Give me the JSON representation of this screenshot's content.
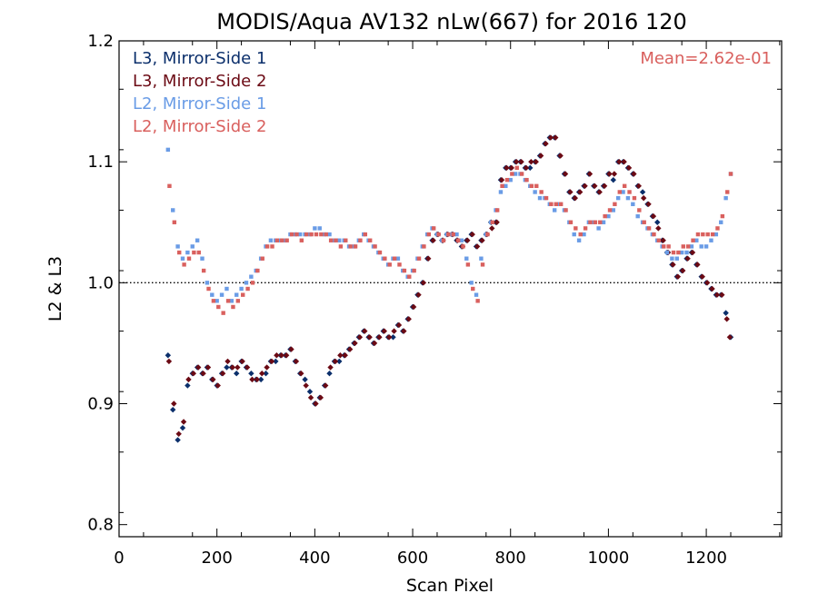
{
  "chart_data": {
    "type": "scatter",
    "title": "MODIS/Aqua AV132 nLw(667) for 2016 120",
    "xlabel": "Scan Pixel",
    "ylabel": "L2 & L3",
    "xlim": [
      0,
      1354
    ],
    "ylim": [
      0.79,
      1.2
    ],
    "xticks": [
      0,
      200,
      400,
      600,
      800,
      1000,
      1200
    ],
    "xtick_labels": [
      "0",
      "200",
      "400",
      "600",
      "800",
      "1000",
      "1200"
    ],
    "yticks": [
      0.8,
      0.9,
      1.0,
      1.1,
      1.2
    ],
    "ytick_labels": [
      "0.8",
      "0.9",
      "1.0",
      "1.1",
      "1.2"
    ],
    "reference_line": 1.0,
    "annotation": "Mean=2.62e-01",
    "annotation_color": "#d9605e",
    "legend_position": "top-left",
    "series": [
      {
        "name": "L3, Mirror-Side 1",
        "color": "#0b2f6b",
        "marker": "diamond",
        "x": [
          100,
          110,
          120,
          130,
          140,
          150,
          160,
          170,
          180,
          190,
          200,
          210,
          220,
          230,
          240,
          250,
          260,
          270,
          280,
          290,
          300,
          310,
          320,
          330,
          340,
          350,
          360,
          370,
          380,
          390,
          400,
          410,
          420,
          430,
          440,
          450,
          460,
          470,
          480,
          490,
          500,
          510,
          520,
          530,
          540,
          550,
          560,
          570,
          580,
          590,
          600,
          610,
          620,
          630,
          640,
          650,
          660,
          670,
          680,
          690,
          700,
          710,
          720,
          730,
          740,
          750,
          760,
          770,
          780,
          790,
          800,
          810,
          820,
          830,
          840,
          850,
          860,
          870,
          880,
          890,
          900,
          910,
          920,
          930,
          940,
          950,
          960,
          970,
          980,
          990,
          1000,
          1010,
          1020,
          1030,
          1040,
          1050,
          1060,
          1070,
          1080,
          1090,
          1100,
          1110,
          1120,
          1130,
          1140,
          1150,
          1160,
          1170,
          1180,
          1190,
          1200,
          1210,
          1220,
          1230,
          1240,
          1250
        ],
        "y": [
          0.94,
          0.895,
          0.87,
          0.88,
          0.915,
          0.925,
          0.93,
          0.925,
          0.93,
          0.92,
          0.915,
          0.925,
          0.93,
          0.93,
          0.925,
          0.935,
          0.93,
          0.925,
          0.92,
          0.92,
          0.925,
          0.935,
          0.935,
          0.94,
          0.94,
          0.945,
          0.935,
          0.925,
          0.92,
          0.91,
          0.9,
          0.905,
          0.915,
          0.925,
          0.935,
          0.935,
          0.94,
          0.945,
          0.95,
          0.955,
          0.96,
          0.955,
          0.95,
          0.955,
          0.96,
          0.955,
          0.955,
          0.965,
          0.96,
          0.97,
          0.98,
          0.99,
          1.0,
          1.02,
          1.035,
          1.04,
          1.035,
          1.04,
          1.04,
          1.035,
          1.03,
          1.035,
          1.04,
          1.03,
          1.035,
          1.04,
          1.05,
          1.05,
          1.085,
          1.095,
          1.095,
          1.1,
          1.1,
          1.095,
          1.095,
          1.1,
          1.105,
          1.115,
          1.12,
          1.12,
          1.105,
          1.09,
          1.075,
          1.07,
          1.075,
          1.08,
          1.09,
          1.08,
          1.075,
          1.08,
          1.09,
          1.085,
          1.1,
          1.1,
          1.095,
          1.09,
          1.08,
          1.075,
          1.065,
          1.055,
          1.05,
          1.035,
          1.025,
          1.015,
          1.005,
          1.01,
          1.02,
          1.025,
          1.015,
          1.005,
          1.0,
          0.995,
          0.99,
          0.99,
          0.975,
          0.955
        ]
      },
      {
        "name": "L3, Mirror-Side 2",
        "color": "#6b0a14",
        "marker": "diamond",
        "x": [
          102,
          112,
          122,
          132,
          142,
          152,
          162,
          172,
          182,
          192,
          202,
          212,
          222,
          232,
          242,
          252,
          262,
          272,
          282,
          292,
          302,
          312,
          322,
          332,
          342,
          352,
          362,
          372,
          382,
          392,
          402,
          412,
          422,
          432,
          442,
          452,
          462,
          472,
          482,
          492,
          502,
          512,
          522,
          532,
          542,
          552,
          562,
          572,
          582,
          592,
          602,
          612,
          622,
          632,
          642,
          652,
          662,
          672,
          682,
          692,
          702,
          712,
          722,
          732,
          742,
          752,
          762,
          772,
          782,
          792,
          802,
          812,
          822,
          832,
          842,
          852,
          862,
          872,
          882,
          892,
          902,
          912,
          922,
          932,
          942,
          952,
          962,
          972,
          982,
          992,
          1002,
          1012,
          1022,
          1032,
          1042,
          1052,
          1062,
          1072,
          1082,
          1092,
          1102,
          1112,
          1122,
          1132,
          1142,
          1152,
          1162,
          1172,
          1182,
          1192,
          1202,
          1212,
          1222,
          1232,
          1242,
          1248
        ],
        "y": [
          0.935,
          0.9,
          0.875,
          0.885,
          0.92,
          0.925,
          0.93,
          0.925,
          0.93,
          0.92,
          0.915,
          0.925,
          0.935,
          0.93,
          0.93,
          0.935,
          0.93,
          0.92,
          0.92,
          0.925,
          0.93,
          0.935,
          0.94,
          0.94,
          0.94,
          0.945,
          0.935,
          0.925,
          0.915,
          0.905,
          0.9,
          0.905,
          0.915,
          0.93,
          0.935,
          0.94,
          0.94,
          0.945,
          0.95,
          0.955,
          0.96,
          0.955,
          0.95,
          0.955,
          0.96,
          0.955,
          0.96,
          0.965,
          0.96,
          0.97,
          0.98,
          0.99,
          1.0,
          1.02,
          1.035,
          1.04,
          1.035,
          1.04,
          1.04,
          1.035,
          1.03,
          1.035,
          1.04,
          1.03,
          1.035,
          1.04,
          1.045,
          1.05,
          1.085,
          1.095,
          1.095,
          1.1,
          1.1,
          1.095,
          1.1,
          1.1,
          1.105,
          1.115,
          1.12,
          1.12,
          1.105,
          1.09,
          1.075,
          1.07,
          1.075,
          1.08,
          1.09,
          1.08,
          1.075,
          1.08,
          1.09,
          1.09,
          1.1,
          1.1,
          1.095,
          1.09,
          1.08,
          1.07,
          1.065,
          1.055,
          1.045,
          1.035,
          1.025,
          1.015,
          1.005,
          1.01,
          1.02,
          1.025,
          1.015,
          1.005,
          1.0,
          0.995,
          0.99,
          0.99,
          0.97,
          0.955
        ]
      },
      {
        "name": "L2, Mirror-Side 1",
        "color": "#6a9ce6",
        "marker": "square",
        "x": [
          100,
          110,
          120,
          130,
          140,
          150,
          160,
          170,
          180,
          190,
          200,
          210,
          220,
          230,
          240,
          250,
          260,
          270,
          280,
          290,
          300,
          310,
          320,
          330,
          340,
          350,
          360,
          370,
          380,
          390,
          400,
          410,
          420,
          430,
          440,
          450,
          460,
          470,
          480,
          490,
          500,
          510,
          520,
          530,
          540,
          550,
          560,
          570,
          580,
          590,
          600,
          610,
          620,
          630,
          640,
          650,
          660,
          670,
          680,
          690,
          700,
          710,
          720,
          730,
          740,
          750,
          760,
          770,
          780,
          790,
          800,
          810,
          820,
          830,
          840,
          850,
          860,
          870,
          880,
          890,
          900,
          910,
          920,
          930,
          940,
          950,
          960,
          970,
          980,
          990,
          1000,
          1010,
          1020,
          1030,
          1040,
          1050,
          1060,
          1070,
          1080,
          1090,
          1100,
          1110,
          1120,
          1130,
          1140,
          1150,
          1160,
          1170,
          1180,
          1190,
          1200,
          1210,
          1220,
          1230,
          1240,
          1250
        ],
        "y": [
          1.11,
          1.06,
          1.03,
          1.02,
          1.025,
          1.03,
          1.035,
          1.02,
          1.0,
          0.99,
          0.985,
          0.99,
          0.995,
          0.985,
          0.99,
          0.995,
          1.0,
          1.005,
          1.01,
          1.02,
          1.03,
          1.035,
          1.035,
          1.035,
          1.035,
          1.04,
          1.04,
          1.04,
          1.04,
          1.04,
          1.045,
          1.045,
          1.04,
          1.04,
          1.035,
          1.035,
          1.035,
          1.03,
          1.03,
          1.035,
          1.04,
          1.035,
          1.03,
          1.025,
          1.02,
          1.015,
          1.02,
          1.02,
          1.01,
          1.005,
          1.01,
          1.02,
          1.03,
          1.04,
          1.045,
          1.04,
          1.035,
          1.04,
          1.04,
          1.04,
          1.035,
          1.02,
          1.0,
          0.99,
          1.02,
          1.04,
          1.05,
          1.06,
          1.075,
          1.08,
          1.085,
          1.09,
          1.09,
          1.085,
          1.08,
          1.075,
          1.07,
          1.07,
          1.065,
          1.06,
          1.065,
          1.06,
          1.05,
          1.04,
          1.035,
          1.04,
          1.05,
          1.05,
          1.045,
          1.05,
          1.055,
          1.06,
          1.07,
          1.075,
          1.07,
          1.065,
          1.055,
          1.05,
          1.045,
          1.04,
          1.035,
          1.03,
          1.025,
          1.02,
          1.02,
          1.025,
          1.025,
          1.03,
          1.035,
          1.03,
          1.03,
          1.035,
          1.04,
          1.05,
          1.07,
          1.09
        ]
      },
      {
        "name": "L2, Mirror-Side 2",
        "color": "#d9605e",
        "marker": "square",
        "x": [
          103,
          113,
          123,
          133,
          143,
          153,
          163,
          173,
          183,
          193,
          203,
          213,
          223,
          233,
          243,
          253,
          263,
          273,
          283,
          293,
          303,
          313,
          323,
          333,
          343,
          353,
          363,
          373,
          383,
          393,
          403,
          413,
          423,
          433,
          443,
          453,
          463,
          473,
          483,
          493,
          503,
          513,
          523,
          533,
          543,
          553,
          563,
          573,
          583,
          593,
          603,
          613,
          623,
          633,
          643,
          653,
          663,
          673,
          683,
          693,
          703,
          713,
          723,
          733,
          743,
          753,
          763,
          773,
          783,
          793,
          803,
          813,
          823,
          833,
          843,
          853,
          863,
          873,
          883,
          893,
          903,
          913,
          923,
          933,
          943,
          953,
          963,
          973,
          983,
          993,
          1003,
          1013,
          1023,
          1033,
          1043,
          1053,
          1063,
          1073,
          1083,
          1093,
          1103,
          1113,
          1123,
          1133,
          1143,
          1153,
          1163,
          1173,
          1183,
          1193,
          1203,
          1213,
          1223,
          1233,
          1243,
          1250
        ],
        "y": [
          1.08,
          1.05,
          1.025,
          1.015,
          1.02,
          1.025,
          1.025,
          1.01,
          0.995,
          0.985,
          0.98,
          0.975,
          0.985,
          0.98,
          0.985,
          0.99,
          0.995,
          1.0,
          1.01,
          1.02,
          1.03,
          1.03,
          1.035,
          1.035,
          1.035,
          1.04,
          1.04,
          1.035,
          1.04,
          1.04,
          1.04,
          1.04,
          1.04,
          1.035,
          1.035,
          1.03,
          1.035,
          1.03,
          1.03,
          1.035,
          1.04,
          1.035,
          1.03,
          1.025,
          1.02,
          1.015,
          1.02,
          1.015,
          1.01,
          1.005,
          1.01,
          1.02,
          1.03,
          1.04,
          1.045,
          1.04,
          1.035,
          1.04,
          1.04,
          1.035,
          1.03,
          1.015,
          0.995,
          0.985,
          1.015,
          1.04,
          1.05,
          1.06,
          1.08,
          1.085,
          1.09,
          1.095,
          1.09,
          1.085,
          1.08,
          1.08,
          1.075,
          1.07,
          1.065,
          1.065,
          1.065,
          1.06,
          1.05,
          1.045,
          1.04,
          1.045,
          1.05,
          1.05,
          1.05,
          1.055,
          1.06,
          1.065,
          1.075,
          1.08,
          1.075,
          1.07,
          1.06,
          1.05,
          1.045,
          1.04,
          1.035,
          1.03,
          1.03,
          1.025,
          1.025,
          1.03,
          1.03,
          1.035,
          1.04,
          1.04,
          1.04,
          1.04,
          1.045,
          1.055,
          1.075,
          1.09
        ]
      }
    ]
  }
}
